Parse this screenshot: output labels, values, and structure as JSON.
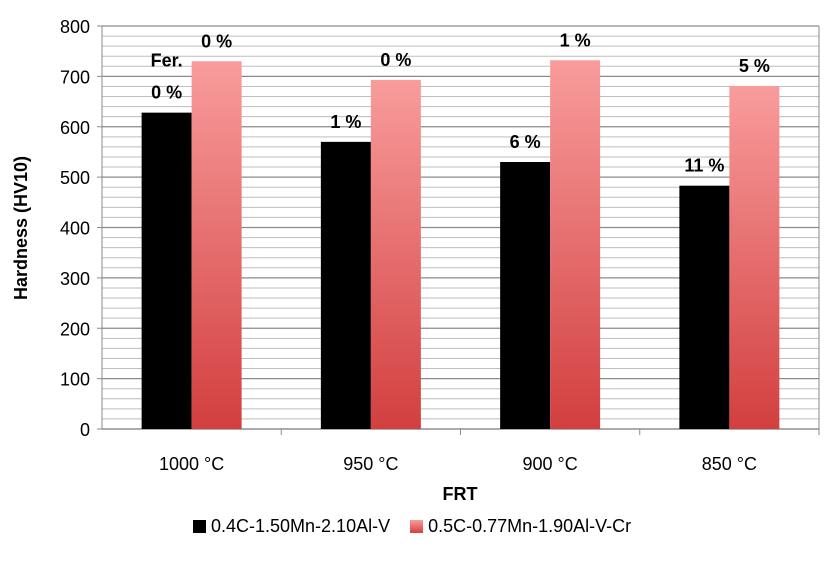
{
  "chart_data": {
    "type": "bar",
    "title": "",
    "xlabel": "FRT",
    "ylabel": "Hardness (HV10)",
    "ylim": [
      0,
      800
    ],
    "yticks": [
      0,
      100,
      200,
      300,
      400,
      500,
      600,
      700,
      800
    ],
    "minor_grid_step": 20,
    "grid": true,
    "categories": [
      "1000 °C",
      "950 °C",
      "900 °C",
      "850 °C"
    ],
    "legend_position": "bottom",
    "series": [
      {
        "name": "0.4C-1.50Mn-2.10Al-V",
        "color": "#000000",
        "values": [
          628,
          570,
          530,
          483
        ],
        "labels": [
          "0 %",
          "1 %",
          "6 %",
          "11 %"
        ]
      },
      {
        "name": "0.5C-0.77Mn-1.90Al-V-Cr",
        "color": "#f79a9a",
        "color_bottom": "#d23f3f",
        "values": [
          730,
          693,
          732,
          681
        ],
        "labels": [
          "0 %",
          "0 %",
          "1 %",
          "5 %"
        ]
      }
    ],
    "annotations": [
      {
        "text": "Fer.",
        "category": "1000 °C",
        "series": 0
      }
    ]
  }
}
